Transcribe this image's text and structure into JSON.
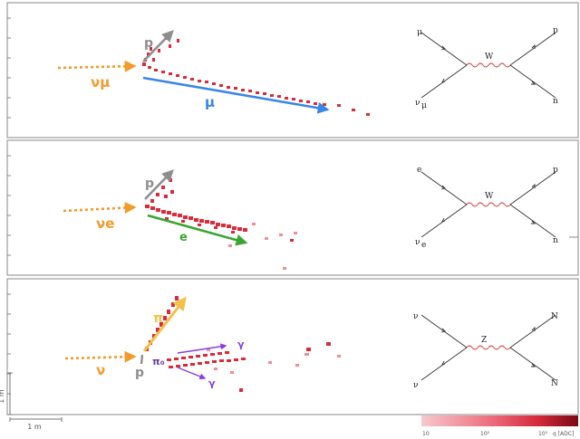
{
  "panels": [
    {
      "id": "numu-cc",
      "labels": {
        "neutrino": "νμ",
        "proton": "p",
        "lepton": "μ"
      },
      "feynman": {
        "top_left": "μ",
        "bottom_left": "ν",
        "bottom_left_sub": "μ",
        "boson": "W",
        "top_right": "p",
        "bottom_right": "n"
      }
    },
    {
      "id": "nue-cc",
      "labels": {
        "neutrino": "νe",
        "proton": "p",
        "lepton": "e"
      },
      "feynman": {
        "top_left": "e",
        "bottom_left": "ν",
        "bottom_left_sub": "e",
        "boson": "W",
        "top_right": "p",
        "bottom_right": "n"
      }
    },
    {
      "id": "nc-pi0",
      "labels": {
        "neutrino": "ν",
        "proton": "p",
        "pion": "π",
        "pi0": "π₀",
        "gamma1": "γ",
        "gamma2": "γ"
      },
      "feynman": {
        "top_left": "ν",
        "bottom_left": "ν",
        "bottom_left_sub": "",
        "boson": "Z",
        "top_right": "N",
        "bottom_right": "N"
      }
    }
  ],
  "scale": {
    "vertical": "1 m",
    "horizontal": "1 m"
  },
  "colorbar": {
    "ticks": [
      "10",
      "10²",
      "10³"
    ],
    "unit_label": "q [ADC]",
    "color_low": "#f6c9cf",
    "color_high": "#7a0a14"
  },
  "colors": {
    "neutrino": "#f39a2b",
    "proton": "#8e8e8e",
    "muon": "#3a86e8",
    "electron": "#3aa631",
    "pion": "#f5c048",
    "gamma": "#8a3ce0",
    "hit": "#d92b3a"
  }
}
